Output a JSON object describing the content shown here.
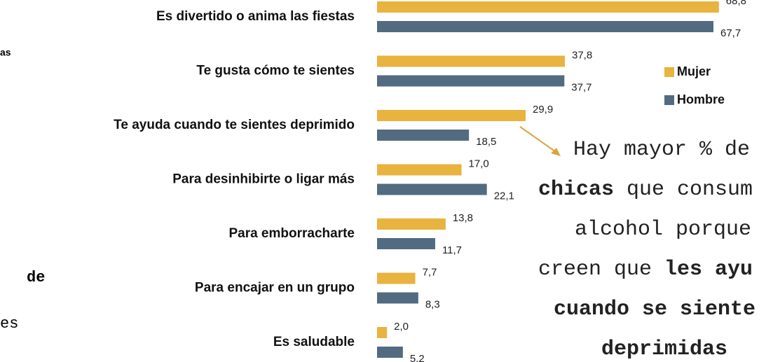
{
  "chart_data": {
    "type": "bar",
    "orientation": "horizontal",
    "categories": [
      "Es divertido o anima las fiestas",
      "Te gusta cómo te sientes",
      "Te ayuda cuando te sientes deprimido",
      "Para desinhibirte o ligar más",
      "Para emborracharte",
      "Para encajar en un grupo",
      "Es saludable"
    ],
    "series": [
      {
        "name": "Mujer",
        "color": "#e8b33e",
        "values": [
          68.8,
          37.8,
          29.9,
          17.0,
          13.8,
          7.7,
          2.0
        ],
        "value_labels": [
          "68,8",
          "37,8",
          "29,9",
          "17,0",
          "13,8",
          "7,7",
          "2,0"
        ]
      },
      {
        "name": "Hombre",
        "color": "#526b80",
        "values": [
          67.7,
          37.7,
          18.5,
          22.1,
          11.7,
          8.3,
          5.2
        ],
        "value_labels": [
          "67,7",
          "37,7",
          "18,5",
          "22,1",
          "11,7",
          "8,3",
          "5,2"
        ]
      }
    ],
    "annotation": {
      "lines": [
        [
          {
            "text": "Hay mayor % de",
            "bold": false
          }
        ],
        [
          {
            "text": "chicas",
            "bold": true
          },
          {
            "text": " que consum",
            "bold": false
          }
        ],
        [
          {
            "text": "alcohol porque",
            "bold": false
          }
        ],
        [
          {
            "text": "creen que ",
            "bold": false
          },
          {
            "text": "les ayu",
            "bold": true
          }
        ],
        [
          {
            "text": "cuando se siente",
            "bold": true
          }
        ],
        [
          {
            "text": "deprimidas",
            "bold": true
          }
        ]
      ]
    }
  },
  "left_fragments": [
    "as",
    "de",
    "es"
  ]
}
